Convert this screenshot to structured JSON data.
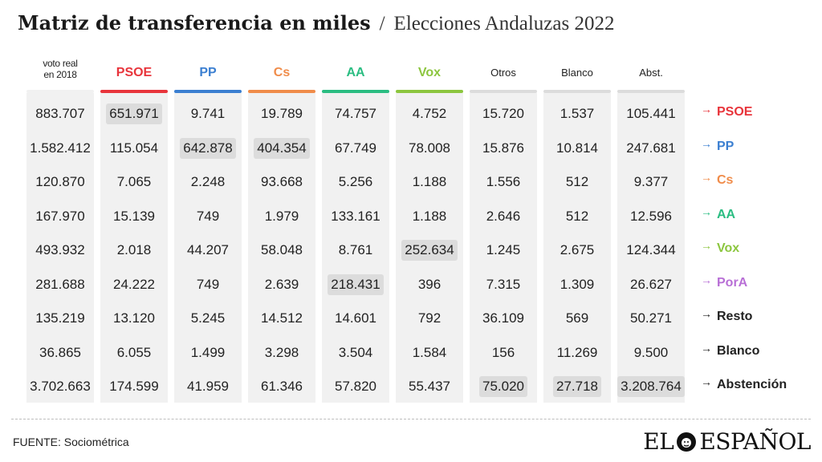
{
  "title": {
    "main": "Matriz de transferencia en miles",
    "separator": "/",
    "subtitle": "Elecciones Andaluzas 2022"
  },
  "chart_data": {
    "type": "table",
    "title": "Matriz de transferencia en miles / Elecciones Andaluzas 2022",
    "columns": [
      {
        "label": "voto real\nen 2018",
        "color": "#f1f1f1",
        "bold": false
      },
      {
        "label": "PSOE",
        "color": "#e8343b",
        "bold": true
      },
      {
        "label": "PP",
        "color": "#3b7fd1",
        "bold": true
      },
      {
        "label": "Cs",
        "color": "#f08c4a",
        "bold": true
      },
      {
        "label": "AA",
        "color": "#2bbd82",
        "bold": true
      },
      {
        "label": "Vox",
        "color": "#8cc63f",
        "bold": true
      },
      {
        "label": "Otros",
        "color": "#dcdcdc",
        "bold": false
      },
      {
        "label": "Blanco",
        "color": "#dcdcdc",
        "bold": false
      },
      {
        "label": "Abst.",
        "color": "#dcdcdc",
        "bold": false
      }
    ],
    "rows": [
      {
        "label": "PSOE",
        "color": "#e8343b",
        "values": [
          "883.707",
          "651.971",
          "9.741",
          "19.789",
          "74.757",
          "4.752",
          "15.720",
          "1.537",
          "105.441"
        ],
        "highlight": [
          1
        ]
      },
      {
        "label": "PP",
        "color": "#3b7fd1",
        "values": [
          "1.582.412",
          "115.054",
          "642.878",
          "404.354",
          "67.749",
          "78.008",
          "15.876",
          "10.814",
          "247.681"
        ],
        "highlight": [
          2,
          3
        ]
      },
      {
        "label": "Cs",
        "color": "#f08c4a",
        "values": [
          "120.870",
          "7.065",
          "2.248",
          "93.668",
          "5.256",
          "1.188",
          "1.556",
          "512",
          "9.377"
        ],
        "highlight": []
      },
      {
        "label": "AA",
        "color": "#2bbd82",
        "values": [
          "167.970",
          "15.139",
          "749",
          "1.979",
          "133.161",
          "1.188",
          "2.646",
          "512",
          "12.596"
        ],
        "highlight": []
      },
      {
        "label": "Vox",
        "color": "#8cc63f",
        "values": [
          "493.932",
          "2.018",
          "44.207",
          "58.048",
          "8.761",
          "252.634",
          "1.245",
          "2.675",
          "124.344"
        ],
        "highlight": [
          5
        ]
      },
      {
        "label": "PorA",
        "color": "#b86fd6",
        "values": [
          "281.688",
          "24.222",
          "749",
          "2.639",
          "218.431",
          "396",
          "7.315",
          "1.309",
          "26.627"
        ],
        "highlight": [
          4
        ]
      },
      {
        "label": "Resto",
        "color": "#222222",
        "values": [
          "135.219",
          "13.120",
          "5.245",
          "14.512",
          "14.601",
          "792",
          "36.109",
          "569",
          "50.271"
        ],
        "highlight": []
      },
      {
        "label": "Blanco",
        "color": "#222222",
        "values": [
          "36.865",
          "6.055",
          "1.499",
          "3.298",
          "3.504",
          "1.584",
          "156",
          "11.269",
          "9.500"
        ],
        "highlight": []
      },
      {
        "label": "Abstención",
        "color": "#222222",
        "values": [
          "3.702.663",
          "174.599",
          "41.959",
          "61.346",
          "57.820",
          "55.437",
          "75.020",
          "27.718",
          "3.208.764"
        ],
        "highlight": [
          6,
          7,
          8
        ]
      }
    ],
    "arrow": "→"
  },
  "footer": {
    "source": "FUENTE: Sociométrica",
    "logo_left": "EL",
    "logo_right": "ESPAÑOL"
  }
}
